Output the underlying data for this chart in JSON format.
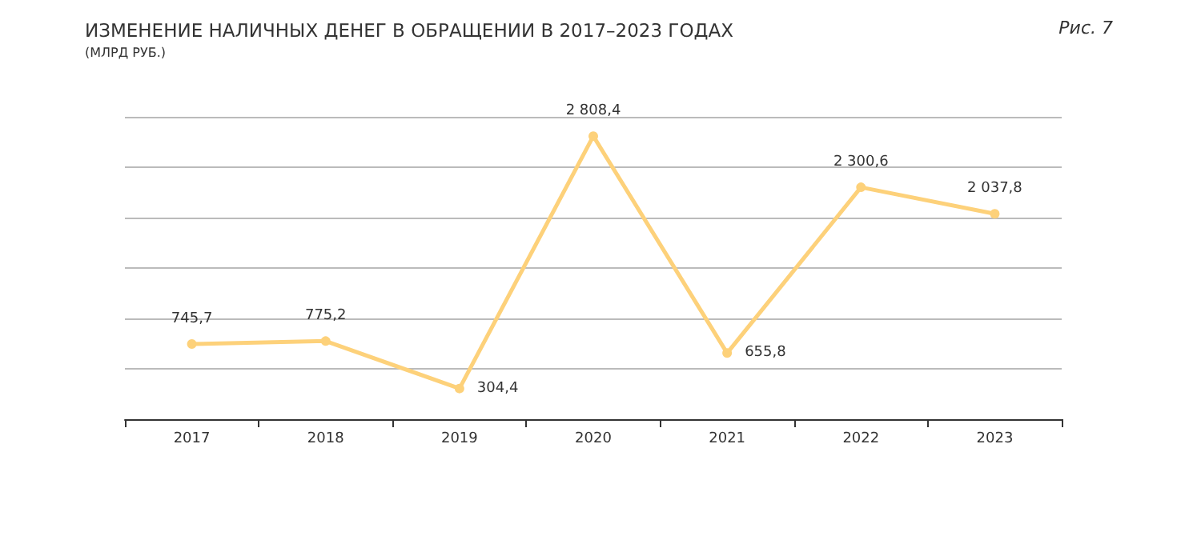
{
  "chart_data": {
    "type": "line",
    "title": "ИЗМЕНЕНИЕ НАЛИЧНЫХ ДЕНЕГ В ОБРАЩЕНИИ В 2017–2023 ГОДАХ",
    "subtitle": "(МЛРД РУБ.)",
    "annotations": [
      "Рис. 7"
    ],
    "categories": [
      "2017",
      "2018",
      "2019",
      "2020",
      "2021",
      "2022",
      "2023"
    ],
    "series": [
      {
        "color": "#fdd17a",
        "values": [
          745.7,
          775.2,
          304.4,
          2808.4,
          655.8,
          2300.6,
          2037.8
        ],
        "value_labels": [
          "745,7",
          "775,2",
          "304,4",
          "2 808,4",
          "655,8",
          "2 300,6",
          "2 037,8"
        ]
      }
    ],
    "ylim": [
      0,
      3000
    ],
    "yticks": [
      {
        "value": 0,
        "label": null
      },
      {
        "value": 500,
        "label": null
      },
      {
        "value": 1000,
        "label": null
      },
      {
        "value": 1500,
        "label": null
      },
      {
        "value": 2000,
        "label": null
      },
      {
        "value": 2500,
        "label": null
      },
      {
        "value": 3000,
        "label": null
      }
    ],
    "grid": "y",
    "tick_labels": "x",
    "marker": "circle",
    "line_style": "solid"
  }
}
